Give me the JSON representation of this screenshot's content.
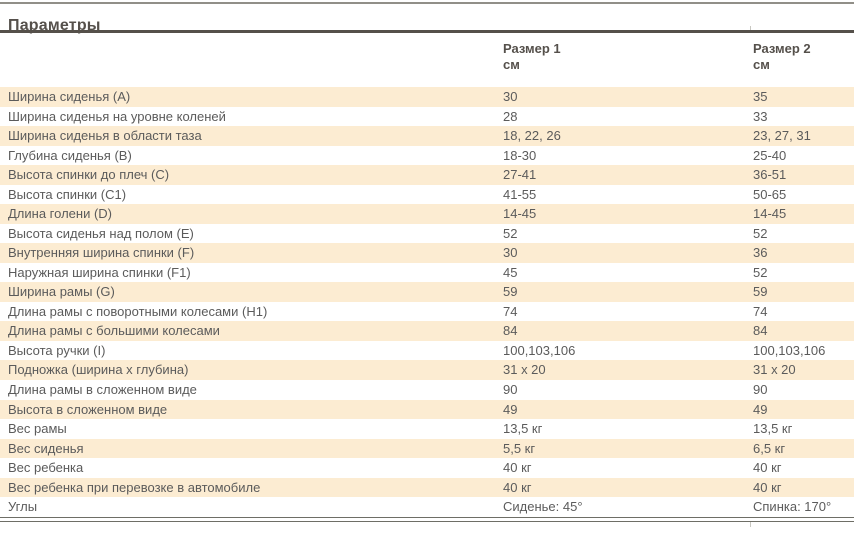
{
  "page_title": "Параметры",
  "table": {
    "column_headers": [
      {
        "label": "Размер 1",
        "unit": "см"
      },
      {
        "label": "Размер 2",
        "unit": "см"
      }
    ],
    "rows": [
      {
        "label": "Ширина сиденья (А)",
        "size1": "30",
        "size2": "35"
      },
      {
        "label": "Ширина сиденья на уровне коленей",
        "size1": "28",
        "size2": "33"
      },
      {
        "label": "Ширина сиденья в области таза",
        "size1": "18, 22, 26",
        "size2": "23, 27, 31"
      },
      {
        "label": "Глубина сиденья (В)",
        "size1": "18-30",
        "size2": "25-40"
      },
      {
        "label": "Высота спинки до плеч (С)",
        "size1": "27-41",
        "size2": "36-51"
      },
      {
        "label": "Высота спинки (С1)",
        "size1": "41-55",
        "size2": "50-65"
      },
      {
        "label": "Длина голени (D)",
        "size1": "14-45",
        "size2": "14-45"
      },
      {
        "label": "Высота сиденья над полом (Е)",
        "size1": "52",
        "size2": "52"
      },
      {
        "label": "Внутренняя ширина спинки (F)",
        "size1": "30",
        "size2": "36"
      },
      {
        "label": "Наружная ширина спинки (F1)",
        "size1": "45",
        "size2": "52"
      },
      {
        "label": "Ширина рамы (G)",
        "size1": "59",
        "size2": "59"
      },
      {
        "label": "Длина рамы с поворотными колесами (Н1)",
        "size1": "74",
        "size2": "74"
      },
      {
        "label": "Длина рамы с большими колесами",
        "size1": "84",
        "size2": "84"
      },
      {
        "label": "Высота ручки (I)",
        "size1": "100,103,106",
        "size2": "100,103,106"
      },
      {
        "label": "Подножка (ширина х глубина)",
        "size1": "31 х 20",
        "size2": "31 х 20"
      },
      {
        "label": "Длина рамы в сложенном виде",
        "size1": "90",
        "size2": "90"
      },
      {
        "label": "Высота в сложенном виде",
        "size1": "49",
        "size2": "49"
      },
      {
        "label": "Вес рамы",
        "size1": "13,5 кг",
        "size2": "13,5 кг"
      },
      {
        "label": "Вес сиденья",
        "size1": "5,5 кг",
        "size2": "6,5 кг"
      },
      {
        "label": "Вес ребенка",
        "size1": "40 кг",
        "size2": "40 кг"
      },
      {
        "label": "Вес ребенка при перевозке в автомобиле",
        "size1": "40 кг",
        "size2": "40 кг"
      },
      {
        "label": "Углы",
        "size1": "Сиденье: 45°",
        "size2": "Спинка: 170°"
      }
    ]
  },
  "colors": {
    "row_stripe": "#fcecd2",
    "body_text": "#5b5b5b",
    "heading_text": "#55504b",
    "rule_light": "#918f88",
    "rule_dark": "#55504a",
    "rule_bottom": "#6e6e66",
    "tick": "#c8c7c1"
  }
}
